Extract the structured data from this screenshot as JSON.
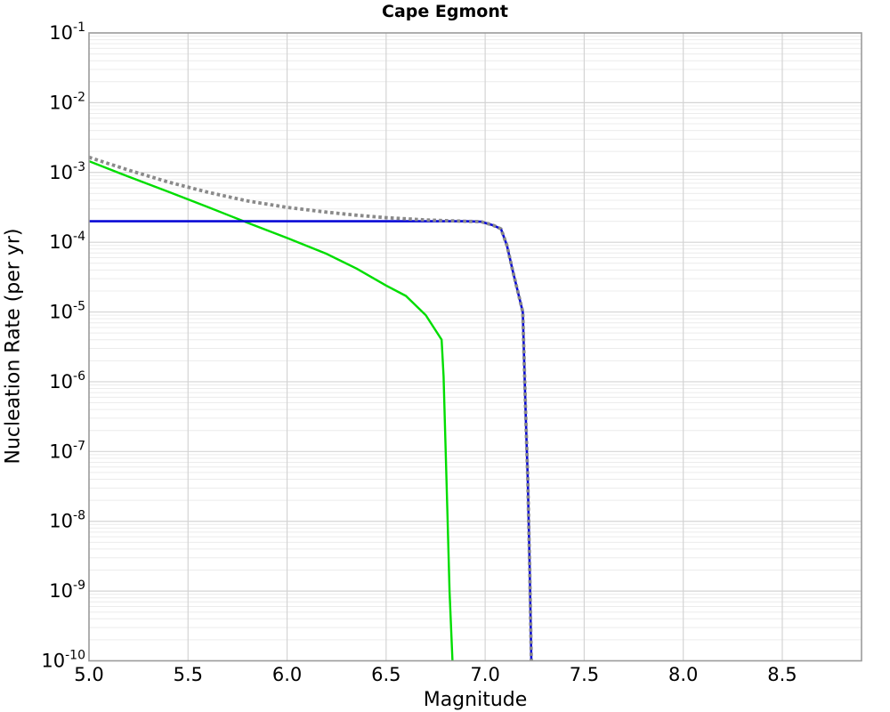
{
  "chart_data": {
    "type": "line",
    "title": "Cape Egmont",
    "xlabel": "Magnitude",
    "ylabel": "Nucleation Rate (per yr)",
    "xlim": [
      5.0,
      8.9
    ],
    "ylim": [
      1e-10,
      0.1
    ],
    "y_scale": "log",
    "x_ticks": [
      {
        "value": 5.0,
        "label": "5.0"
      },
      {
        "value": 5.5,
        "label": "5.5"
      },
      {
        "value": 6.0,
        "label": "6.0"
      },
      {
        "value": 6.5,
        "label": "6.5"
      },
      {
        "value": 7.0,
        "label": "7.0"
      },
      {
        "value": 7.5,
        "label": "7.5"
      },
      {
        "value": 8.0,
        "label": "8.0"
      },
      {
        "value": 8.5,
        "label": "8.5"
      }
    ],
    "y_tick_exponents": [
      -1,
      -2,
      -3,
      -4,
      -5,
      -6,
      -7,
      -8,
      -9,
      -10
    ],
    "grid": {
      "major": true,
      "minor_log_y": true
    },
    "legend": "none",
    "colors": {
      "background": "#ffffff",
      "major_grid": "#d4d4d4",
      "minor_grid": "#ececec",
      "border": "#9b9b9b",
      "text": "#000000",
      "green_series": "#00dd00",
      "blue_series": "#0a0ad6",
      "gray_series": "#8a8a8a"
    },
    "series": [
      {
        "name": "green-solid",
        "style": "solid",
        "stroke_width": 2.4,
        "color_key": "green_series",
        "points": [
          [
            5.0,
            0.00145
          ],
          [
            5.2,
            0.00087
          ],
          [
            5.4,
            0.00053
          ],
          [
            5.6,
            0.00032
          ],
          [
            5.8,
            0.00019
          ],
          [
            6.0,
            0.000115
          ],
          [
            6.2,
            6.8e-05
          ],
          [
            6.35,
            4.2e-05
          ],
          [
            6.5,
            2.4e-05
          ],
          [
            6.6,
            1.7e-05
          ],
          [
            6.7,
            9e-06
          ],
          [
            6.78,
            4e-06
          ],
          [
            6.79,
            1.2e-06
          ],
          [
            6.8,
            1.2e-07
          ],
          [
            6.81,
            1.2e-08
          ],
          [
            6.82,
            1e-09
          ],
          [
            6.835,
            1e-10
          ]
        ]
      },
      {
        "name": "blue-solid",
        "style": "solid",
        "stroke_width": 2.6,
        "color_key": "blue_series",
        "points": [
          [
            5.0,
            0.0002
          ],
          [
            6.0,
            0.0002
          ],
          [
            6.9,
            0.0002
          ],
          [
            6.98,
            0.000197
          ],
          [
            7.04,
            0.000175
          ],
          [
            7.08,
            0.000155
          ],
          [
            7.11,
            9e-05
          ],
          [
            7.14,
            3.8e-05
          ],
          [
            7.17,
            1.7e-05
          ],
          [
            7.19,
            1e-05
          ],
          [
            7.205,
            3e-07
          ],
          [
            7.215,
            4e-08
          ],
          [
            7.225,
            2e-09
          ],
          [
            7.233,
            1e-10
          ]
        ]
      },
      {
        "name": "gray-dotted",
        "style": "dotted",
        "stroke_width": 3.8,
        "color_key": "gray_series",
        "points": [
          [
            5.0,
            0.00165
          ],
          [
            5.2,
            0.00108
          ],
          [
            5.4,
            0.00073
          ],
          [
            5.6,
            0.00052
          ],
          [
            5.8,
            0.00039
          ],
          [
            6.0,
            0.000316
          ],
          [
            6.2,
            0.00027
          ],
          [
            6.35,
            0.000244
          ],
          [
            6.5,
            0.000225
          ],
          [
            6.6,
            0.000217
          ],
          [
            6.7,
            0.000209
          ],
          [
            6.8,
            0.000204
          ],
          [
            6.9,
            0.0002
          ],
          [
            6.98,
            0.000197
          ],
          [
            7.04,
            0.000175
          ],
          [
            7.08,
            0.000155
          ],
          [
            7.11,
            9e-05
          ],
          [
            7.14,
            3.8e-05
          ],
          [
            7.17,
            1.7e-05
          ],
          [
            7.19,
            1e-05
          ],
          [
            7.205,
            3e-07
          ],
          [
            7.215,
            4e-08
          ],
          [
            7.225,
            2e-09
          ],
          [
            7.233,
            1e-10
          ]
        ]
      }
    ]
  }
}
